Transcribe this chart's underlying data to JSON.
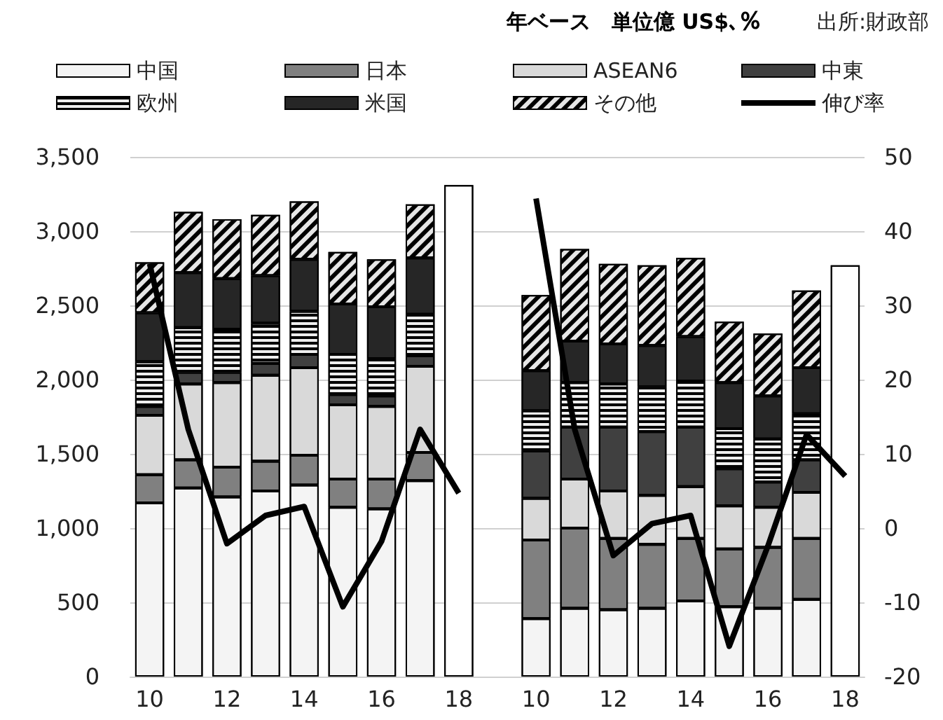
{
  "chart_data": {
    "type": "bar",
    "stacked": true,
    "subtitle": "年ベース　単位億 US$､％",
    "annotations": [
      "出所:財政部"
    ],
    "categories": [
      "10",
      null,
      "12",
      null,
      "14",
      null,
      "16",
      null,
      "18",
      null,
      "10",
      null,
      "12",
      null,
      "14",
      null,
      "16",
      null,
      "18"
    ],
    "series": [
      {
        "name": "中国",
        "color": "#f4f4f4",
        "values": [
          1170,
          1270,
          1210,
          1250,
          1290,
          1140,
          1130,
          1320,
          null,
          null,
          390,
          460,
          450,
          460,
          510,
          470,
          460,
          520,
          null
        ]
      },
      {
        "name": "日本",
        "color": "#808080",
        "values": [
          190,
          190,
          200,
          200,
          200,
          190,
          200,
          190,
          null,
          null,
          530,
          540,
          480,
          430,
          420,
          390,
          410,
          410,
          null
        ]
      },
      {
        "name": "ASEAN6",
        "color": "#d9d9d9",
        "values": [
          400,
          510,
          570,
          580,
          590,
          500,
          490,
          580,
          null,
          null,
          280,
          330,
          320,
          330,
          350,
          290,
          270,
          310,
          null
        ]
      },
      {
        "name": "中東",
        "color": "#404040",
        "values": [
          60,
          80,
          70,
          80,
          90,
          70,
          70,
          70,
          null,
          null,
          320,
          350,
          430,
          430,
          400,
          250,
          170,
          220,
          null
        ]
      },
      {
        "name": "欧州",
        "color": "#eeeeee",
        "values": [
          300,
          300,
          290,
          270,
          290,
          270,
          250,
          280,
          null,
          null,
          270,
          300,
          290,
          300,
          310,
          270,
          290,
          310,
          null
        ]
      },
      {
        "name": "米国",
        "color": "#262626",
        "values": [
          330,
          370,
          340,
          320,
          350,
          340,
          350,
          380,
          null,
          null,
          270,
          280,
          270,
          280,
          300,
          310,
          290,
          310,
          null
        ]
      },
      {
        "name": "その他",
        "color": "#e6e6e6",
        "values": [
          340,
          410,
          400,
          410,
          390,
          350,
          320,
          360,
          null,
          null,
          510,
          620,
          540,
          540,
          530,
          410,
          420,
          520,
          null
        ]
      },
      {
        "color": "#ffffff",
        "values": [
          null,
          null,
          null,
          null,
          null,
          null,
          null,
          null,
          3310,
          null,
          null,
          null,
          null,
          null,
          null,
          null,
          null,
          null,
          2770
        ]
      },
      {
        "name": "伸び率",
        "type": "line",
        "axis": "y2",
        "color": "#000000",
        "values": [
          35.6,
          13.3,
          -2.1,
          1.7,
          2.9,
          -10.6,
          -1.8,
          13.3,
          4.7,
          null,
          44.4,
          13.3,
          -3.7,
          0.6,
          1.7,
          -15.9,
          -2.4,
          12.6,
          7.0
        ]
      }
    ],
    "ylim": [
      0,
      3500
    ],
    "yticks": [
      0,
      500,
      {
        "value": 1000,
        "label": "1,000"
      },
      {
        "value": 1500,
        "label": "1,500"
      },
      {
        "value": 2000,
        "label": "2,000"
      },
      {
        "value": 2500,
        "label": "2,500"
      },
      {
        "value": 3000,
        "label": "3,000"
      },
      {
        "value": 3500,
        "label": "3,500"
      }
    ],
    "y2lim": [
      -20,
      50
    ],
    "y2ticks": [
      -20,
      -10,
      0,
      10,
      20,
      30,
      40,
      50
    ],
    "grid": "y",
    "legend": "top",
    "marker": "none",
    "line_style": "solid"
  }
}
